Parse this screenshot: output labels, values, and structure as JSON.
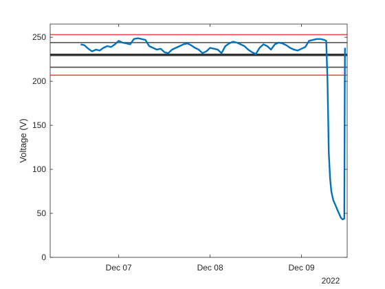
{
  "chart_data": {
    "type": "line",
    "title": "",
    "xlabel": "",
    "ylabel": "Voltage (V)",
    "x_secondary_label": "2022",
    "xlim": [
      "2022-12-06T06:00",
      "2022-12-09T12:00"
    ],
    "ylim": [
      0,
      265
    ],
    "yticks": [
      0,
      50,
      100,
      150,
      200,
      250
    ],
    "xticks": [
      {
        "label": "Dec 07",
        "date": "2022-12-07T00:00"
      },
      {
        "label": "Dec 08",
        "date": "2022-12-08T00:00"
      },
      {
        "label": "Dec 09",
        "date": "2022-12-09T00:00"
      }
    ],
    "grid": false,
    "reference_lines": [
      {
        "value": 253,
        "color": "#ff4040",
        "style": "limit"
      },
      {
        "value": 244,
        "color": "#606060",
        "style": "band"
      },
      {
        "value": 230,
        "color": "#333333",
        "style": "nominal"
      },
      {
        "value": 216,
        "color": "#606060",
        "style": "band"
      },
      {
        "value": 207,
        "color": "#ff4040",
        "style": "limit"
      }
    ],
    "series": [
      {
        "color": "#0072bd",
        "points": [
          [
            "2022-12-06T14:00",
            242
          ],
          [
            "2022-12-06T15:00",
            241
          ],
          [
            "2022-12-06T16:00",
            237
          ],
          [
            "2022-12-06T17:00",
            234
          ],
          [
            "2022-12-06T18:00",
            236
          ],
          [
            "2022-12-06T19:00",
            235
          ],
          [
            "2022-12-06T20:00",
            238
          ],
          [
            "2022-12-06T21:00",
            240
          ],
          [
            "2022-12-06T22:00",
            239
          ],
          [
            "2022-12-06T23:00",
            242
          ],
          [
            "2022-12-07T00:00",
            246
          ],
          [
            "2022-12-07T01:00",
            244
          ],
          [
            "2022-12-07T02:00",
            243
          ],
          [
            "2022-12-07T03:00",
            242
          ],
          [
            "2022-12-07T04:00",
            248
          ],
          [
            "2022-12-07T05:00",
            249
          ],
          [
            "2022-12-07T06:00",
            248
          ],
          [
            "2022-12-07T07:00",
            247
          ],
          [
            "2022-12-07T08:00",
            240
          ],
          [
            "2022-12-07T09:00",
            238
          ],
          [
            "2022-12-07T10:00",
            236
          ],
          [
            "2022-12-07T11:00",
            237
          ],
          [
            "2022-12-07T12:00",
            233
          ],
          [
            "2022-12-07T13:00",
            232
          ],
          [
            "2022-12-07T14:00",
            236
          ],
          [
            "2022-12-07T15:00",
            238
          ],
          [
            "2022-12-07T16:00",
            240
          ],
          [
            "2022-12-07T17:00",
            242
          ],
          [
            "2022-12-07T18:00",
            243
          ],
          [
            "2022-12-07T19:00",
            241
          ],
          [
            "2022-12-07T20:00",
            238
          ],
          [
            "2022-12-07T21:00",
            236
          ],
          [
            "2022-12-07T22:00",
            232
          ],
          [
            "2022-12-07T23:00",
            234
          ],
          [
            "2022-12-08T00:00",
            238
          ],
          [
            "2022-12-08T01:00",
            237
          ],
          [
            "2022-12-08T02:00",
            236
          ],
          [
            "2022-12-08T03:00",
            232
          ],
          [
            "2022-12-08T04:00",
            240
          ],
          [
            "2022-12-08T05:00",
            243
          ],
          [
            "2022-12-08T06:00",
            245
          ],
          [
            "2022-12-08T07:00",
            244
          ],
          [
            "2022-12-08T08:00",
            242
          ],
          [
            "2022-12-08T09:00",
            240
          ],
          [
            "2022-12-08T10:00",
            236
          ],
          [
            "2022-12-08T11:00",
            233
          ],
          [
            "2022-12-08T12:00",
            231
          ],
          [
            "2022-12-08T13:00",
            238
          ],
          [
            "2022-12-08T14:00",
            242
          ],
          [
            "2022-12-08T15:00",
            240
          ],
          [
            "2022-12-08T16:00",
            236
          ],
          [
            "2022-12-08T17:00",
            242
          ],
          [
            "2022-12-08T18:00",
            244
          ],
          [
            "2022-12-08T19:00",
            243
          ],
          [
            "2022-12-08T20:00",
            241
          ],
          [
            "2022-12-08T21:00",
            238
          ],
          [
            "2022-12-08T22:00",
            236
          ],
          [
            "2022-12-08T23:00",
            235
          ],
          [
            "2022-12-09T00:00",
            237
          ],
          [
            "2022-12-09T01:00",
            239
          ],
          [
            "2022-12-09T02:00",
            246
          ],
          [
            "2022-12-09T03:00",
            247
          ],
          [
            "2022-12-09T04:00",
            248
          ],
          [
            "2022-12-09T05:00",
            248
          ],
          [
            "2022-12-09T06:00",
            247
          ],
          [
            "2022-12-09T06:30",
            246
          ],
          [
            "2022-12-09T06:50",
            200
          ],
          [
            "2022-12-09T07:10",
            120
          ],
          [
            "2022-12-09T07:30",
            90
          ],
          [
            "2022-12-09T07:50",
            75
          ],
          [
            "2022-12-09T08:20",
            65
          ],
          [
            "2022-12-09T08:50",
            60
          ],
          [
            "2022-12-09T09:20",
            55
          ],
          [
            "2022-12-09T09:50",
            50
          ],
          [
            "2022-12-09T10:20",
            45
          ],
          [
            "2022-12-09T10:50",
            43
          ],
          [
            "2022-12-09T11:15",
            44
          ],
          [
            "2022-12-09T11:22",
            200
          ],
          [
            "2022-12-09T11:25",
            238
          ]
        ]
      }
    ]
  }
}
